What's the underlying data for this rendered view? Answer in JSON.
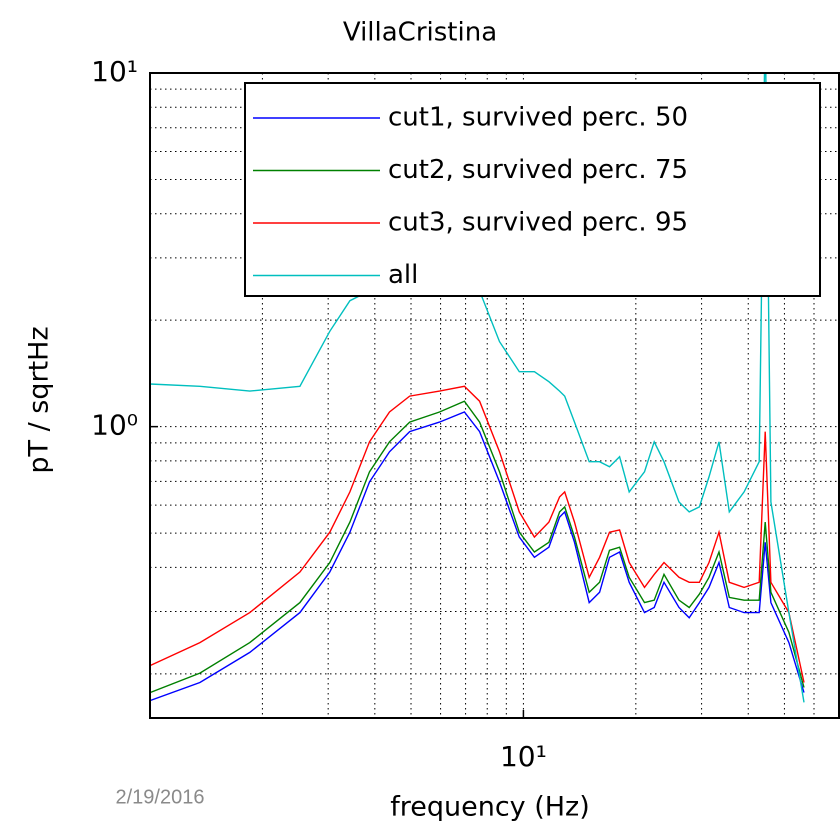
{
  "chart_data": {
    "type": "line",
    "title": "VillaCristina",
    "xlabel": "frequency (Hz)",
    "ylabel": "pT / sqrtHz",
    "footer": "2/19/2016",
    "xscale": "log",
    "yscale": "log",
    "grid": true,
    "legend": "upper right",
    "xlim": [
      1,
      70
    ],
    "ylim": [
      0.15,
      10
    ],
    "xticks": [
      {
        "value": 10,
        "label": "10¹"
      }
    ],
    "yticks": [
      {
        "value": 1,
        "label": "10⁰"
      },
      {
        "value": 10,
        "label": "10¹"
      }
    ],
    "xminor": [
      2,
      3,
      4,
      5,
      6,
      7,
      8,
      9,
      10,
      20,
      30,
      40,
      50,
      60
    ],
    "yminor": [
      0.2,
      0.3,
      0.4,
      0.5,
      0.6,
      0.7,
      0.8,
      0.9,
      1,
      2,
      3,
      4,
      5,
      6,
      7,
      8,
      9
    ],
    "x": [
      1.0,
      1.36,
      1.85,
      2.52,
      3.03,
      3.43,
      3.87,
      4.38,
      4.96,
      5.96,
      6.95,
      7.63,
      8.63,
      9.75,
      10.7,
      11.7,
      12.5,
      12.9,
      13.7,
      15.0,
      16.0,
      17.0,
      18.1,
      19.2,
      21.1,
      22.4,
      23.8,
      26.1,
      27.8,
      29.6,
      31.4,
      33.4,
      35.6,
      39.0,
      42.8,
      44.4,
      46.0,
      51.4,
      56.4
    ],
    "series": [
      {
        "name": "cut1, survived perc. 50",
        "color": "#0000ff",
        "values": [
          0.168,
          0.189,
          0.23,
          0.298,
          0.388,
          0.503,
          0.698,
          0.849,
          0.968,
          1.03,
          1.1,
          0.968,
          0.698,
          0.487,
          0.427,
          0.456,
          0.555,
          0.574,
          0.471,
          0.318,
          0.34,
          0.427,
          0.442,
          0.363,
          0.298,
          0.308,
          0.363,
          0.308,
          0.288,
          0.318,
          0.351,
          0.413,
          0.308,
          0.298,
          0.298,
          0.471,
          0.318,
          0.245,
          0.177
        ]
      },
      {
        "name": "cut2, survived perc. 75",
        "color": "#008000",
        "values": [
          0.177,
          0.201,
          0.245,
          0.318,
          0.413,
          0.537,
          0.745,
          0.906,
          1.03,
          1.1,
          1.18,
          1.03,
          0.745,
          0.503,
          0.442,
          0.471,
          0.574,
          0.593,
          0.487,
          0.34,
          0.363,
          0.447,
          0.456,
          0.375,
          0.318,
          0.323,
          0.382,
          0.323,
          0.308,
          0.336,
          0.375,
          0.442,
          0.329,
          0.323,
          0.323,
          0.537,
          0.34,
          0.262,
          0.183
        ]
      },
      {
        "name": "cut3, survived perc. 95",
        "color": "#ff0000",
        "values": [
          0.211,
          0.245,
          0.298,
          0.388,
          0.503,
          0.654,
          0.906,
          1.1,
          1.22,
          1.26,
          1.3,
          1.18,
          0.849,
          0.574,
          0.487,
          0.537,
          0.633,
          0.654,
          0.537,
          0.375,
          0.427,
          0.503,
          0.51,
          0.413,
          0.351,
          0.382,
          0.413,
          0.375,
          0.363,
          0.363,
          0.413,
          0.503,
          0.363,
          0.351,
          0.363,
          0.968,
          0.363,
          0.298,
          0.189
        ]
      },
      {
        "name": "all",
        "color": "#00bfbf",
        "values": [
          1.32,
          1.3,
          1.26,
          1.3,
          1.86,
          2.27,
          2.42,
          2.58,
          2.94,
          3.35,
          2.94,
          2.42,
          1.74,
          1.43,
          1.43,
          1.34,
          1.26,
          1.22,
          1.03,
          0.796,
          0.796,
          0.77,
          0.822,
          0.654,
          0.745,
          0.906,
          0.796,
          0.612,
          0.574,
          0.593,
          0.721,
          0.906,
          0.574,
          0.654,
          0.796,
          14.1,
          0.612,
          0.298,
          0.166
        ]
      }
    ]
  }
}
